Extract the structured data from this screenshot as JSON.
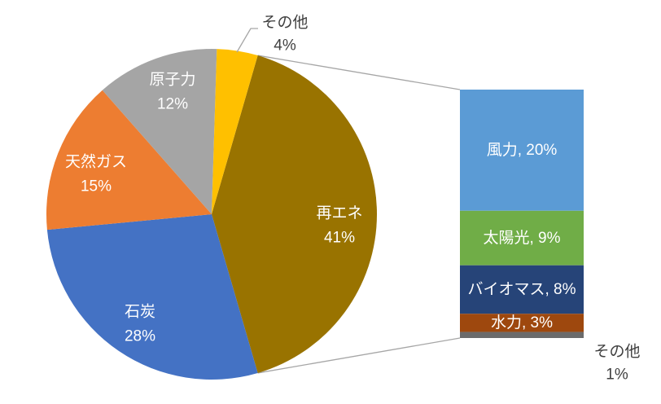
{
  "chart_data": {
    "type": "bar-of-pie",
    "title": "",
    "background": "#FFFFFF",
    "connector_color": "#A6A6A6",
    "outside_label_color": "#404040",
    "pie": {
      "units": "%",
      "slices": [
        {
          "name": "再エネ",
          "value": 41,
          "label_lines": [
            "再エネ",
            "41%"
          ],
          "color": "#997300",
          "label_color": "#FFFFFF",
          "label_placement": "inside"
        },
        {
          "name": "石炭",
          "value": 28,
          "label_lines": [
            "石炭",
            "28%"
          ],
          "color": "#4472C4",
          "label_color": "#FFFFFF",
          "label_placement": "inside"
        },
        {
          "name": "天然ガス",
          "value": 15,
          "label_lines": [
            "天然ガス",
            "15%"
          ],
          "color": "#ED7D31",
          "label_color": "#FFFFFF",
          "label_placement": "inside"
        },
        {
          "name": "原子力",
          "value": 12,
          "label_lines": [
            "原子力",
            "12%"
          ],
          "color": "#A5A5A5",
          "label_color": "#FFFFFF",
          "label_placement": "inside"
        },
        {
          "name": "その他",
          "value": 4,
          "label_lines": [
            "その他",
            "4%"
          ],
          "color": "#FFC000",
          "label_color": "#404040",
          "label_placement": "outside"
        }
      ]
    },
    "bar": {
      "expanded_slice": "再エネ",
      "total": 41,
      "units": "%",
      "segments": [
        {
          "name": "風力",
          "value": 20,
          "label": "風力, 20%",
          "color": "#5B9BD5",
          "label_color": "#FFFFFF",
          "label_placement": "inside"
        },
        {
          "name": "太陽光",
          "value": 9,
          "label": "太陽光, 9%",
          "color": "#70AD47",
          "label_color": "#FFFFFF",
          "label_placement": "inside"
        },
        {
          "name": "バイオマス",
          "value": 8,
          "label": "バイオマス, 8%",
          "color": "#264478",
          "label_color": "#FFFFFF",
          "label_placement": "inside"
        },
        {
          "name": "水力",
          "value": 3,
          "label": "水力, 3%",
          "color": "#9E480E",
          "label_color": "#FFFFFF",
          "label_placement": "inside"
        },
        {
          "name": "その他",
          "value": 1,
          "label_lines": [
            "その他",
            "1%"
          ],
          "color": "#6B6B6B",
          "label_color": "#404040",
          "label_placement": "outside"
        }
      ]
    }
  }
}
